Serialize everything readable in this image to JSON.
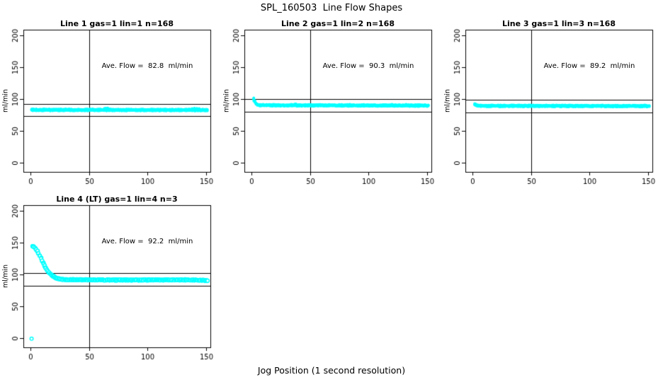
{
  "page": {
    "title": "SPL_160503  Line Flow Shapes",
    "xlabel": "Jog Position (1 second resolution)"
  },
  "colors": {
    "points": "#00FFFF",
    "axis": "#000000",
    "background": "#FFFFFF"
  },
  "chart_data": [
    {
      "type": "scatter",
      "title": "Line 1 gas=1 lin=1 n=168",
      "annotation": "Ave. Flow =  82.8  ml/min",
      "ave_flow": 82.8,
      "n": 168,
      "ylabel": "ml/min",
      "xticks": [
        0,
        50,
        100,
        150
      ],
      "yticks": [
        0,
        50,
        100,
        150,
        200
      ],
      "xlim": [
        -6,
        153.6
      ],
      "ylim": [
        -14.5,
        209
      ],
      "vline_x": 50,
      "hlines": [
        92.8,
        72.8
      ],
      "marker": "band",
      "x_range": [
        1,
        151
      ],
      "profile": [
        [
          1,
          83
        ],
        [
          151,
          82.8
        ]
      ],
      "extras": [
        [
          63,
          85.2
        ],
        [
          64,
          85.7
        ],
        [
          65,
          85.4
        ],
        [
          66,
          85.9
        ],
        [
          138,
          85.2
        ],
        [
          140,
          85.7
        ],
        [
          142,
          85.4
        ],
        [
          144,
          85.1
        ]
      ],
      "outliers": []
    },
    {
      "type": "scatter",
      "title": "Line 2 gas=1 lin=2 n=168",
      "annotation": "Ave. Flow =  90.3  ml/min",
      "ave_flow": 90.3,
      "n": 168,
      "ylabel": "ml/min",
      "xticks": [
        0,
        50,
        100,
        150
      ],
      "yticks": [
        0,
        50,
        100,
        150,
        200
      ],
      "xlim": [
        -6,
        153.6
      ],
      "ylim": [
        -14.5,
        209
      ],
      "vline_x": 50,
      "hlines": [
        100.3,
        80.3
      ],
      "marker": "band",
      "x_range": [
        2,
        151
      ],
      "profile": [
        [
          2,
          100.5
        ],
        [
          3,
          96
        ],
        [
          4,
          92.5
        ],
        [
          5,
          91
        ],
        [
          7,
          90.3
        ],
        [
          80,
          90.0
        ],
        [
          151,
          89.8
        ]
      ],
      "extras": [
        [
          2,
          97
        ],
        [
          37,
          92
        ],
        [
          38,
          92.3
        ],
        [
          84,
          91.8
        ],
        [
          120,
          91.9
        ],
        [
          132,
          91.8
        ]
      ],
      "outliers": []
    },
    {
      "type": "scatter",
      "title": "Line 3 gas=1 lin=3 n=168",
      "annotation": "Ave. Flow =  89.2  ml/min",
      "ave_flow": 89.2,
      "n": 168,
      "ylabel": "ml/min",
      "xticks": [
        0,
        50,
        100,
        150
      ],
      "yticks": [
        0,
        50,
        100,
        150,
        200
      ],
      "xlim": [
        -6,
        153.6
      ],
      "ylim": [
        -14.5,
        209
      ],
      "vline_x": 50,
      "hlines": [
        99.2,
        79.2
      ],
      "marker": "band",
      "x_range": [
        2,
        151
      ],
      "profile": [
        [
          2,
          91.5
        ],
        [
          3,
          90.5
        ],
        [
          5,
          89.8
        ],
        [
          10,
          89.3
        ],
        [
          151,
          89.0
        ]
      ],
      "extras": [
        [
          2,
          93
        ],
        [
          3,
          92.2
        ]
      ],
      "outliers": []
    },
    {
      "type": "scatter",
      "title": "Line 4 (LT) gas=1 lin=4 n=3",
      "annotation": "Ave. Flow =  92.2  ml/min",
      "ave_flow": 92.2,
      "n": 3,
      "ylabel": "ml/min",
      "xticks": [
        0,
        50,
        100,
        150
      ],
      "yticks": [
        0,
        50,
        100,
        150,
        200
      ],
      "xlim": [
        -6,
        153.6
      ],
      "ylim": [
        -14.5,
        209
      ],
      "vline_x": 50,
      "hlines": [
        102.2,
        82.2
      ],
      "marker": "open-circle",
      "runs": 3,
      "x_range": [
        2,
        151
      ],
      "profile": [
        [
          2,
          145
        ],
        [
          3,
          143.8
        ],
        [
          4,
          142
        ],
        [
          5,
          139.5
        ],
        [
          6,
          136.5
        ],
        [
          7,
          133
        ],
        [
          8,
          129.5
        ],
        [
          9,
          125.5
        ],
        [
          10,
          121.5
        ],
        [
          11,
          117.5
        ],
        [
          12,
          114
        ],
        [
          13,
          110.5
        ],
        [
          14,
          107.5
        ],
        [
          15,
          105
        ],
        [
          16,
          102.5
        ],
        [
          17,
          100.5
        ],
        [
          18,
          99
        ],
        [
          19,
          97.5
        ],
        [
          20,
          96.3
        ],
        [
          21,
          95.3
        ],
        [
          22,
          94.5
        ],
        [
          23,
          93.8
        ],
        [
          24,
          93.3
        ],
        [
          26,
          92.7
        ],
        [
          28,
          92.3
        ],
        [
          32,
          92
        ],
        [
          45,
          91.6
        ],
        [
          70,
          91.3
        ],
        [
          100,
          91.4
        ],
        [
          130,
          91.6
        ],
        [
          145,
          91.2
        ],
        [
          151,
          90.3
        ]
      ],
      "extras": [],
      "outliers": [
        [
          1,
          -1
        ]
      ]
    }
  ]
}
